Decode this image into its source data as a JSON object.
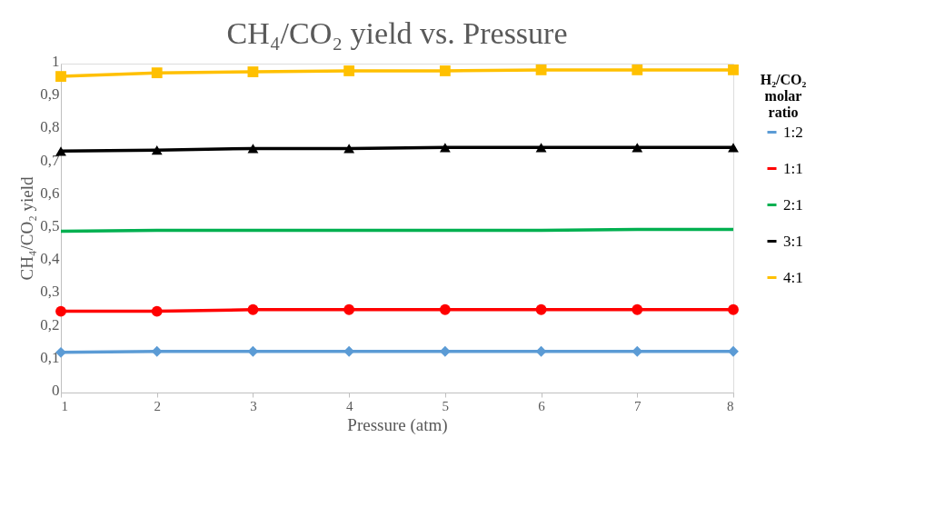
{
  "chart_data": {
    "type": "line",
    "title": "CH₄/CO₂ yield vs. Pressure",
    "xlabel": "Pressure (atm)",
    "ylabel": "CH₄/CO₂ yield",
    "legend_title": "H₂/CO₂ molar ratio",
    "x": [
      1,
      2,
      3,
      4,
      5,
      6,
      7,
      8
    ],
    "xlim": [
      1,
      8
    ],
    "xticks": [
      1,
      2,
      3,
      4,
      5,
      6,
      7,
      8
    ],
    "ylim": [
      0,
      1
    ],
    "yticks": [
      0,
      {
        "value": 0.1,
        "label": "0,1"
      },
      {
        "value": 0.2,
        "label": "0,2"
      },
      {
        "value": 0.3,
        "label": "0,3"
      },
      {
        "value": 0.4,
        "label": "0,4"
      },
      {
        "value": 0.5,
        "label": "0,5"
      },
      {
        "value": 0.6,
        "label": "0,6"
      },
      {
        "value": 0.7,
        "label": "0,7"
      },
      {
        "value": 0.8,
        "label": "0,8"
      },
      {
        "value": 0.9,
        "label": "0,9"
      },
      1
    ],
    "grid": false,
    "legend": "right",
    "series": [
      {
        "name": "1:2",
        "color": "#5b9bd5",
        "marker": "diamond",
        "values": [
          0.122,
          0.125,
          0.125,
          0.125,
          0.125,
          0.125,
          0.125,
          0.125
        ]
      },
      {
        "name": "1:1",
        "color": "#ff0000",
        "marker": "circle",
        "values": [
          0.247,
          0.247,
          0.252,
          0.252,
          0.252,
          0.252,
          0.252,
          0.252
        ]
      },
      {
        "name": "2:1",
        "color": "#00b050",
        "marker": "none",
        "values": [
          0.49,
          0.493,
          0.493,
          0.493,
          0.493,
          0.493,
          0.496,
          0.496
        ]
      },
      {
        "name": "3:1",
        "color": "#000000",
        "marker": "triangle",
        "values": [
          0.734,
          0.737,
          0.742,
          0.742,
          0.745,
          0.745,
          0.745,
          0.745
        ]
      },
      {
        "name": "4:1",
        "color": "#ffc000",
        "marker": "square",
        "values": [
          0.961,
          0.972,
          0.975,
          0.978,
          0.978,
          0.981,
          0.981,
          0.981
        ]
      }
    ]
  }
}
